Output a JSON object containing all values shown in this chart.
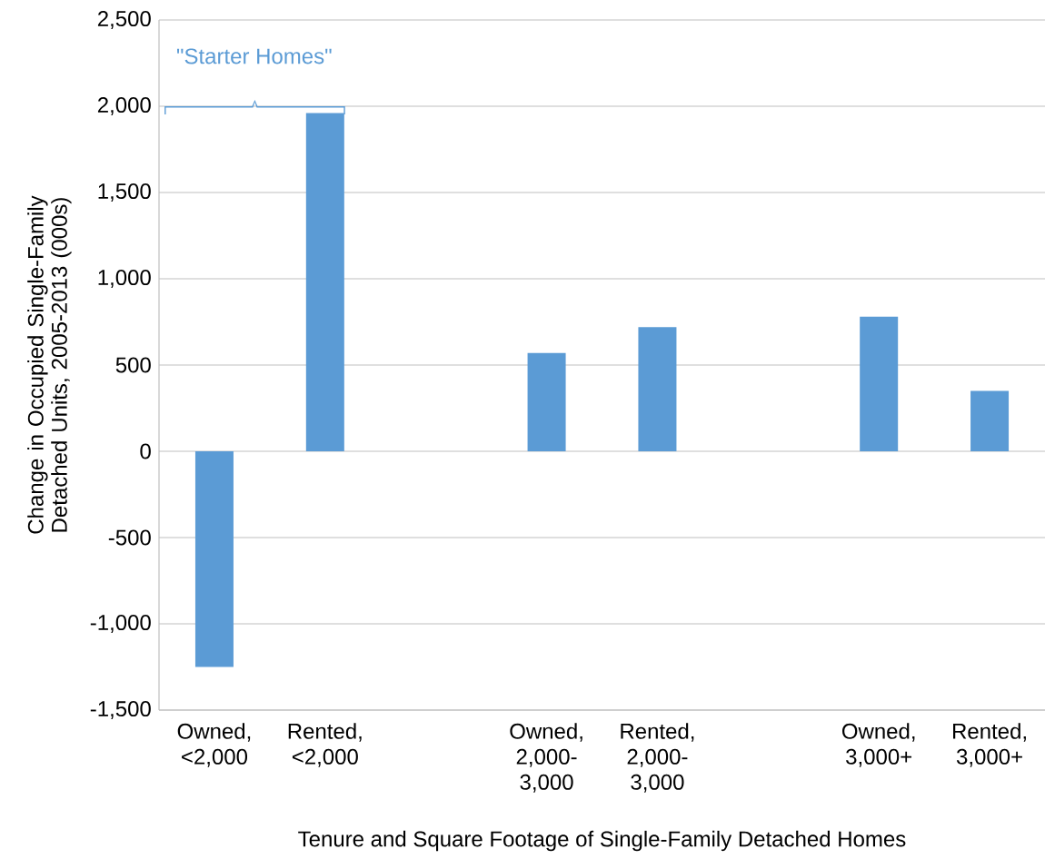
{
  "chart_data": {
    "type": "bar",
    "xlabel": "Tenure and Square Footage of Single-Family Detached Homes",
    "ylabel": "Change in Occupied Single-Family Detached Units, 2005-2013 (000s)",
    "categories": [
      "Owned, <2,000",
      "Rented, <2,000",
      null,
      "Owned, 2,000-3,000",
      "Rented, 2,000-3,000",
      null,
      "Owned, 3,000+",
      "Rented, 3,000+"
    ],
    "values": [
      -1250,
      1960,
      null,
      570,
      720,
      null,
      780,
      350
    ],
    "color": "#5b9bd5",
    "ylim": [
      -1500,
      2500
    ],
    "yticks": [
      {
        "value": -1500,
        "label": "-1,500"
      },
      {
        "value": -1000,
        "label": "-1,000"
      },
      {
        "value": -500,
        "label": "-500"
      },
      0,
      500,
      {
        "value": 1000,
        "label": "1,000"
      },
      {
        "value": 1500,
        "label": "1,500"
      },
      {
        "value": 2000,
        "label": "2,000"
      },
      {
        "value": 2500,
        "label": "2,500"
      }
    ],
    "grid": "y",
    "annotations": [
      "\"Starter Homes\""
    ]
  }
}
